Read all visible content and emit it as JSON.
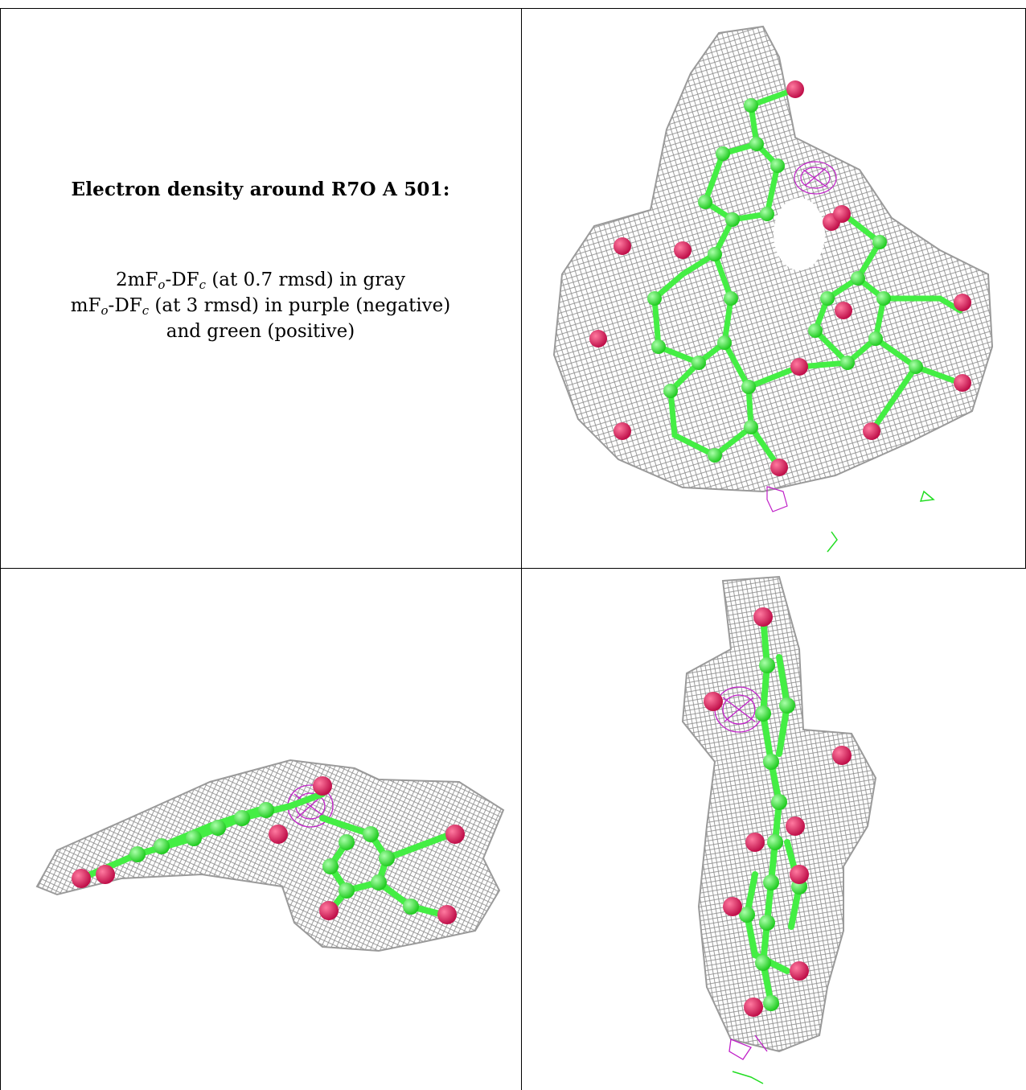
{
  "caption": {
    "title": "Electron density around R7O A 501:",
    "line1": {
      "a": "2mF",
      "b": "o",
      "c": "-DF",
      "d": "c",
      "e": " (at 0.7 rmsd) in gray"
    },
    "line2": {
      "a": "mF",
      "b": "o",
      "c": "-DF",
      "d": "c",
      "e": " (at 3 rmsd) in purple (negative)"
    },
    "line3": "and green (positive)"
  },
  "colors": {
    "mesh_2fofc": "#8a8a8a",
    "mesh_negative": "#c020c8",
    "mesh_positive": "#22dd22",
    "carbon": "#44ee44",
    "oxygen": "#e0205a",
    "border": "#000000"
  },
  "panels": [
    {
      "name": "view-top",
      "ligand": "R7O A 501"
    },
    {
      "name": "view-side-horizontal",
      "ligand": "R7O A 501"
    },
    {
      "name": "view-side-vertical",
      "ligand": "R7O A 501"
    }
  ]
}
